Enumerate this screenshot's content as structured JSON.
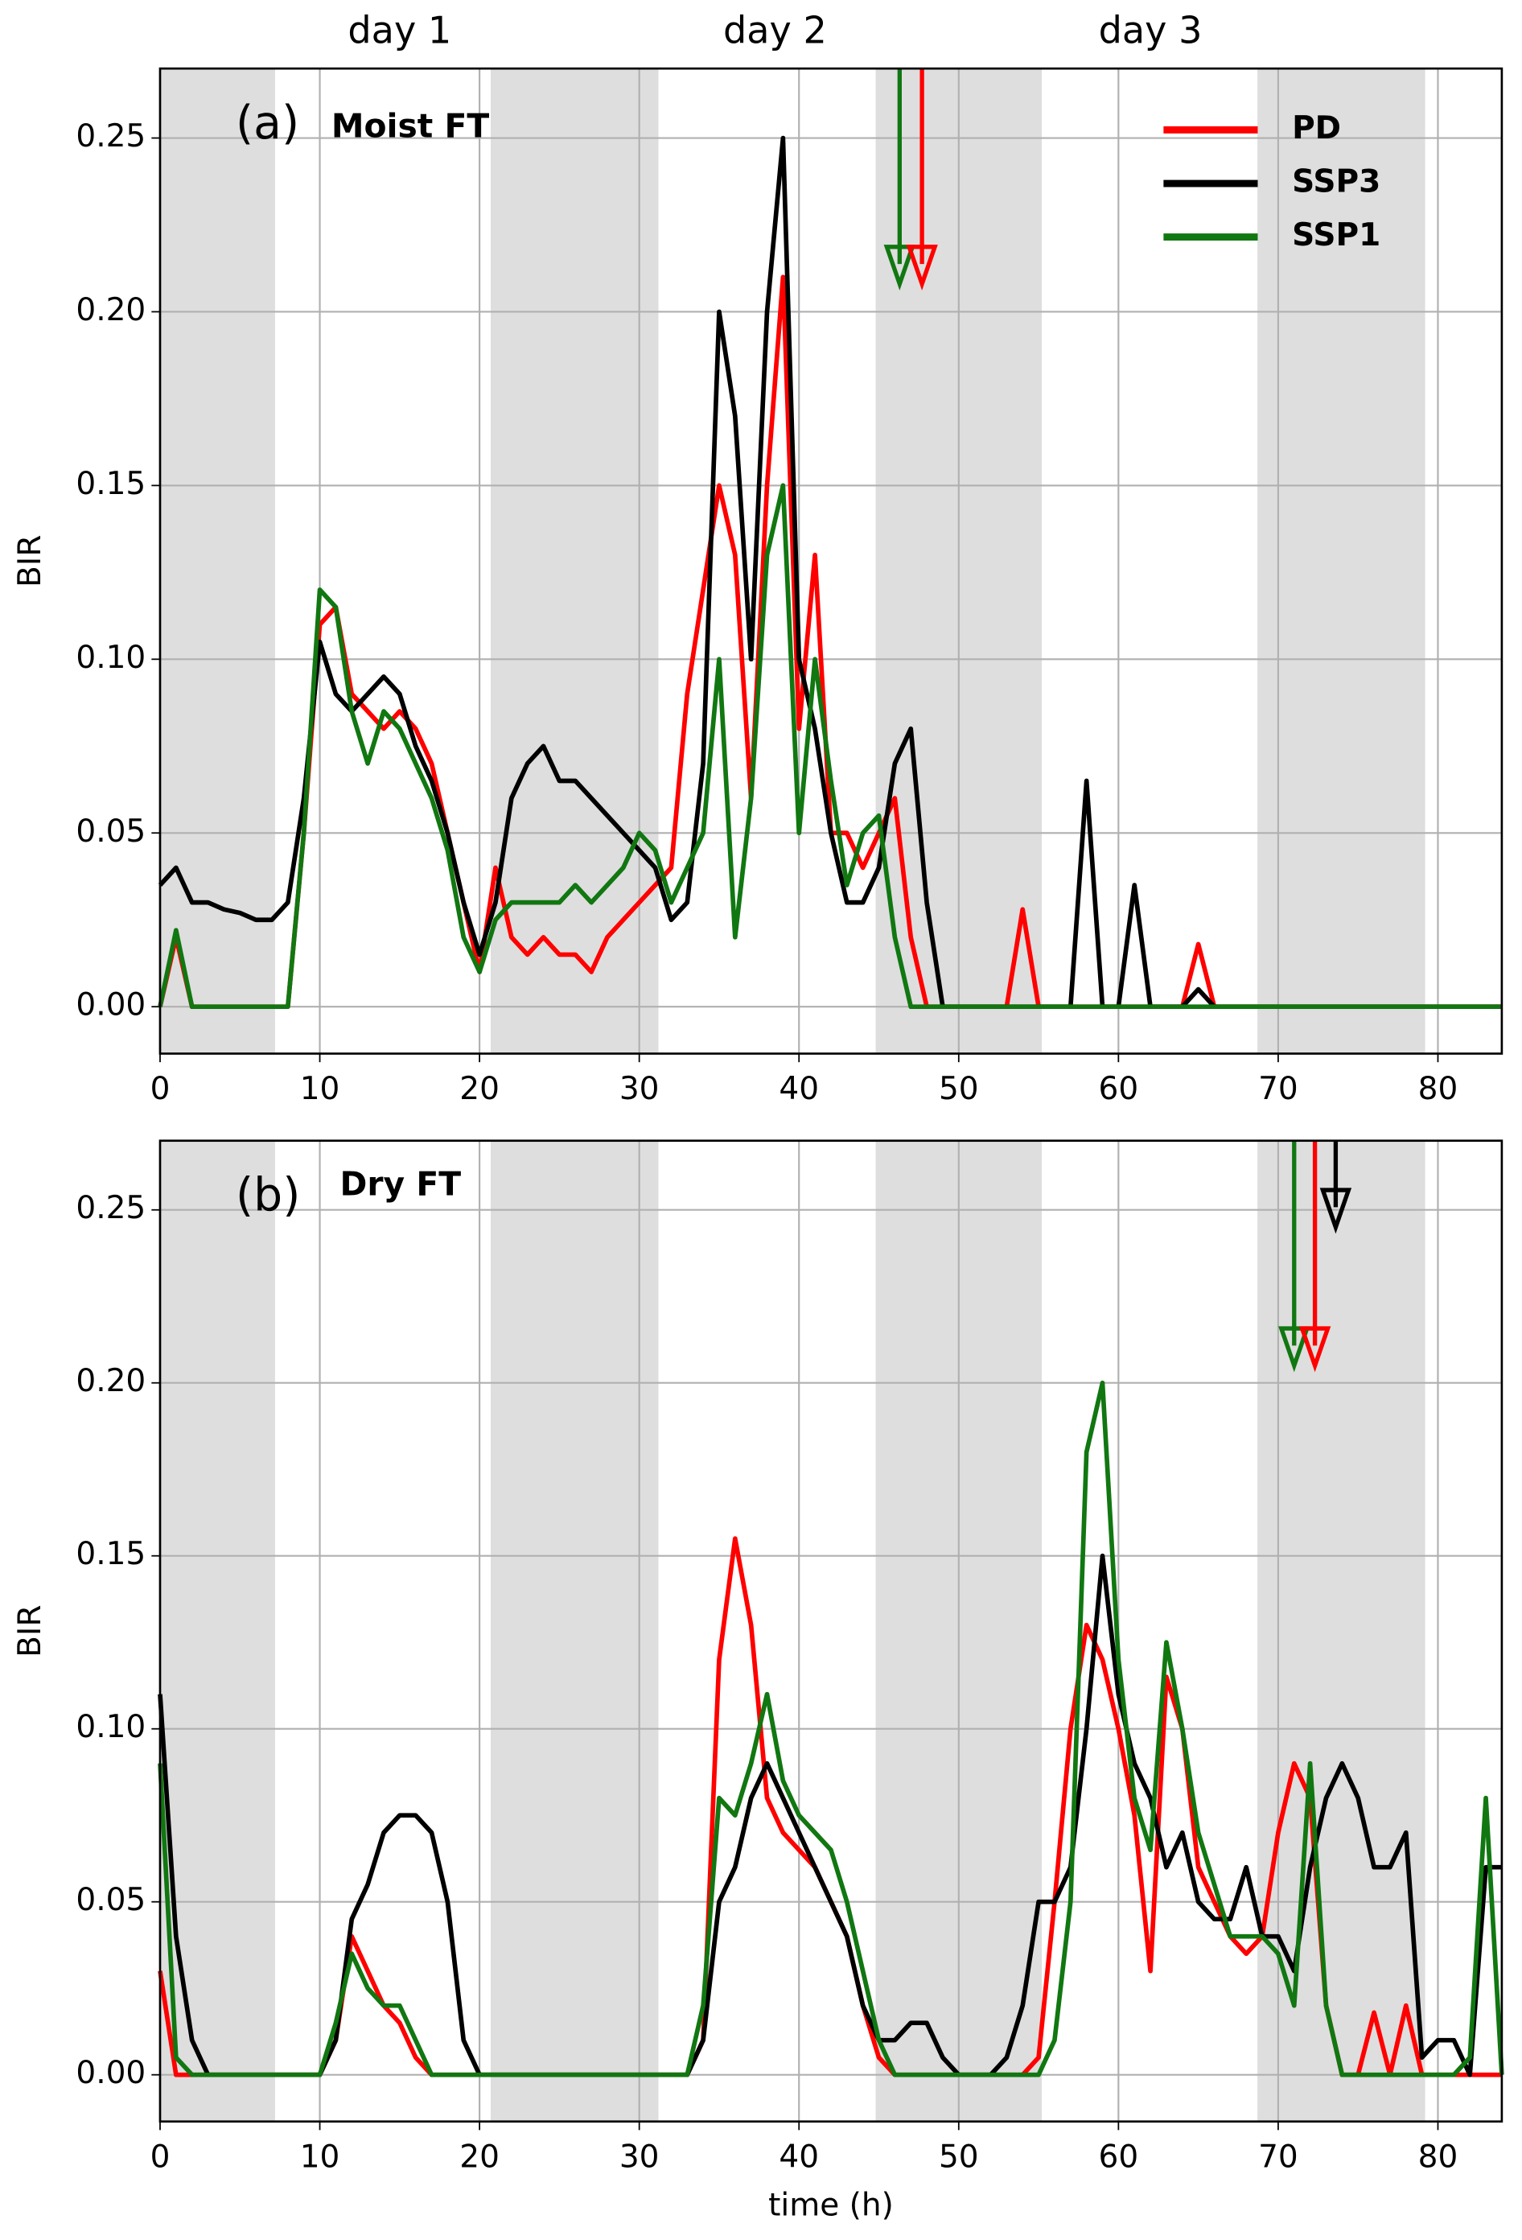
{
  "chart_data": [
    {
      "type": "line",
      "panel_label": "(a)",
      "panel_title": "Moist FT",
      "ylabel": "BIR",
      "day_labels": [
        {
          "text": "day 1",
          "x": 15
        },
        {
          "text": "day 2",
          "x": 38.5
        },
        {
          "text": "day 3",
          "x": 62
        }
      ],
      "xlim": [
        0,
        84
      ],
      "ylim": [
        -0.0135,
        0.27
      ],
      "xticks": [
        0,
        10,
        20,
        30,
        40,
        50,
        60,
        70,
        80
      ],
      "yticks": [
        {
          "value": 0,
          "label": "0.00"
        },
        {
          "value": 0.05,
          "label": "0.05"
        },
        {
          "value": 0.1,
          "label": "0.10"
        },
        {
          "value": 0.15,
          "label": "0.15"
        },
        {
          "value": 0.2,
          "label": "0.20"
        },
        {
          "value": 0.25,
          "label": "0.25"
        }
      ],
      "grid": true,
      "legend": "upper right",
      "shaded_spans": [
        [
          0,
          7.2
        ],
        [
          20.7,
          31.2
        ],
        [
          44.8,
          55.2
        ],
        [
          68.7,
          79.2
        ]
      ],
      "arrows": [
        {
          "x": 46.3,
          "y_end": 0.208,
          "color": "#117711"
        },
        {
          "x": 47.7,
          "y_end": 0.208,
          "color": "#ff0000"
        }
      ],
      "x": [
        0,
        1,
        2,
        3,
        4,
        5,
        6,
        7,
        8,
        9,
        10,
        11,
        12,
        13,
        14,
        15,
        16,
        17,
        18,
        19,
        20,
        21,
        22,
        23,
        24,
        25,
        26,
        27,
        28,
        29,
        30,
        31,
        32,
        33,
        34,
        35,
        36,
        37,
        38,
        39,
        40,
        41,
        42,
        43,
        44,
        45,
        46,
        47,
        48,
        49,
        50,
        51,
        52,
        53,
        54,
        55,
        56,
        57,
        58,
        59,
        60,
        61,
        62,
        63,
        64,
        65,
        66,
        67,
        68,
        69,
        70,
        71,
        72,
        73,
        74,
        75,
        76,
        77,
        78,
        79,
        80,
        81,
        82,
        83,
        84
      ],
      "series": [
        {
          "name": "PD",
          "color": "#ff0000",
          "values": [
            0,
            0.02,
            0,
            0,
            0,
            0,
            0,
            0,
            0,
            0.05,
            0.11,
            0.115,
            0.09,
            0.085,
            0.08,
            0.085,
            0.08,
            0.07,
            0.05,
            0.03,
            0.01,
            0.04,
            0.02,
            0.015,
            0.02,
            0.015,
            0.015,
            0.01,
            0.02,
            0.025,
            0.03,
            0.035,
            0.04,
            0.09,
            0.12,
            0.15,
            0.13,
            0.06,
            0.15,
            0.21,
            0.08,
            0.13,
            0.05,
            0.05,
            0.04,
            0.05,
            0.06,
            0.02,
            0,
            0,
            0,
            0,
            0,
            0,
            0.028,
            0,
            0,
            0,
            0,
            0,
            0,
            0,
            0,
            0,
            0,
            0.018,
            0,
            0,
            0,
            0,
            0,
            0,
            0,
            0,
            0,
            0,
            0,
            0,
            0,
            0,
            0,
            0,
            0,
            0,
            0
          ]
        },
        {
          "name": "SSP3",
          "color": "#000000",
          "values": [
            0.035,
            0.04,
            0.03,
            0.03,
            0.028,
            0.027,
            0.025,
            0.025,
            0.03,
            0.06,
            0.105,
            0.09,
            0.085,
            0.09,
            0.095,
            0.09,
            0.075,
            0.065,
            0.05,
            0.03,
            0.015,
            0.03,
            0.06,
            0.07,
            0.075,
            0.065,
            0.065,
            0.06,
            0.055,
            0.05,
            0.045,
            0.04,
            0.025,
            0.03,
            0.07,
            0.2,
            0.17,
            0.1,
            0.2,
            0.25,
            0.1,
            0.08,
            0.05,
            0.03,
            0.03,
            0.04,
            0.07,
            0.08,
            0.03,
            0,
            0,
            0,
            0,
            0,
            0,
            0,
            0,
            0,
            0.065,
            0,
            0,
            0.035,
            0,
            0,
            0,
            0.005,
            0,
            0,
            0,
            0,
            0,
            0,
            0,
            0,
            0,
            0,
            0,
            0,
            0,
            0,
            0,
            0,
            0,
            0,
            0
          ]
        },
        {
          "name": "SSP1",
          "color": "#117711",
          "values": [
            0,
            0.022,
            0,
            0,
            0,
            0,
            0,
            0,
            0,
            0.05,
            0.12,
            0.115,
            0.085,
            0.07,
            0.085,
            0.08,
            0.07,
            0.06,
            0.045,
            0.02,
            0.01,
            0.025,
            0.03,
            0.03,
            0.03,
            0.03,
            0.035,
            0.03,
            0.035,
            0.04,
            0.05,
            0.045,
            0.03,
            0.04,
            0.05,
            0.1,
            0.02,
            0.06,
            0.13,
            0.15,
            0.05,
            0.1,
            0.065,
            0.035,
            0.05,
            0.055,
            0.02,
            0,
            0,
            0,
            0,
            0,
            0,
            0,
            0,
            0,
            0,
            0,
            0,
            0,
            0,
            0,
            0,
            0,
            0,
            0,
            0,
            0,
            0,
            0,
            0,
            0,
            0,
            0,
            0,
            0,
            0,
            0,
            0,
            0,
            0,
            0,
            0,
            0,
            0
          ]
        }
      ]
    },
    {
      "type": "line",
      "panel_label": "(b)",
      "panel_title": "Dry FT",
      "ylabel": "BIR",
      "xlabel": "time (h)",
      "xlim": [
        0,
        84
      ],
      "ylim": [
        -0.0135,
        0.27
      ],
      "xticks": [
        0,
        10,
        20,
        30,
        40,
        50,
        60,
        70,
        80
      ],
      "yticks": [
        {
          "value": 0,
          "label": "0.00"
        },
        {
          "value": 0.05,
          "label": "0.05"
        },
        {
          "value": 0.1,
          "label": "0.10"
        },
        {
          "value": 0.15,
          "label": "0.15"
        },
        {
          "value": 0.2,
          "label": "0.20"
        },
        {
          "value": 0.25,
          "label": "0.25"
        }
      ],
      "grid": true,
      "shaded_spans": [
        [
          0,
          7.2
        ],
        [
          20.7,
          31.2
        ],
        [
          44.8,
          55.2
        ],
        [
          68.7,
          79.2
        ]
      ],
      "arrows": [
        {
          "x": 71,
          "y_end": 0.205,
          "color": "#117711"
        },
        {
          "x": 72.3,
          "y_end": 0.205,
          "color": "#ff0000"
        },
        {
          "x": 73.6,
          "y_end": 0.245,
          "color": "#000000"
        }
      ],
      "x": [
        0,
        1,
        2,
        3,
        4,
        5,
        6,
        7,
        8,
        9,
        10,
        11,
        12,
        13,
        14,
        15,
        16,
        17,
        18,
        19,
        20,
        21,
        22,
        23,
        24,
        25,
        26,
        27,
        28,
        29,
        30,
        31,
        32,
        33,
        34,
        35,
        36,
        37,
        38,
        39,
        40,
        41,
        42,
        43,
        44,
        45,
        46,
        47,
        48,
        49,
        50,
        51,
        52,
        53,
        54,
        55,
        56,
        57,
        58,
        59,
        60,
        61,
        62,
        63,
        64,
        65,
        66,
        67,
        68,
        69,
        70,
        71,
        72,
        73,
        74,
        75,
        76,
        77,
        78,
        79,
        80,
        81,
        82,
        83,
        84
      ],
      "series": [
        {
          "name": "PD",
          "color": "#ff0000",
          "values": [
            0.03,
            0,
            0,
            0,
            0,
            0,
            0,
            0,
            0,
            0,
            0,
            0.01,
            0.04,
            0.03,
            0.02,
            0.015,
            0.005,
            0,
            0,
            0,
            0,
            0,
            0,
            0,
            0,
            0,
            0,
            0,
            0,
            0,
            0,
            0,
            0,
            0,
            0.01,
            0.12,
            0.155,
            0.13,
            0.08,
            0.07,
            0.065,
            0.06,
            0.05,
            0.04,
            0.02,
            0.005,
            0,
            0,
            0,
            0,
            0,
            0,
            0,
            0,
            0,
            0.005,
            0.05,
            0.1,
            0.13,
            0.12,
            0.1,
            0.075,
            0.03,
            0.115,
            0.1,
            0.06,
            0.05,
            0.04,
            0.035,
            0.04,
            0.07,
            0.09,
            0.08,
            0.02,
            0,
            0,
            0.018,
            0,
            0.02,
            0,
            0,
            0,
            0,
            0,
            0
          ]
        },
        {
          "name": "SSP3",
          "color": "#000000",
          "values": [
            0.11,
            0.04,
            0.01,
            0,
            0,
            0,
            0,
            0,
            0,
            0,
            0,
            0.01,
            0.045,
            0.055,
            0.07,
            0.075,
            0.075,
            0.07,
            0.05,
            0.01,
            0,
            0,
            0,
            0,
            0,
            0,
            0,
            0,
            0,
            0,
            0,
            0,
            0,
            0,
            0.01,
            0.05,
            0.06,
            0.08,
            0.09,
            0.08,
            0.07,
            0.06,
            0.05,
            0.04,
            0.02,
            0.01,
            0.01,
            0.015,
            0.015,
            0.005,
            0,
            0,
            0,
            0.005,
            0.02,
            0.05,
            0.05,
            0.06,
            0.1,
            0.15,
            0.11,
            0.09,
            0.08,
            0.06,
            0.07,
            0.05,
            0.045,
            0.045,
            0.06,
            0.04,
            0.04,
            0.03,
            0.06,
            0.08,
            0.09,
            0.08,
            0.06,
            0.06,
            0.07,
            0.005,
            0.01,
            0.01,
            0,
            0.06,
            0.06
          ]
        },
        {
          "name": "SSP1",
          "color": "#117711",
          "values": [
            0.09,
            0.005,
            0,
            0,
            0,
            0,
            0,
            0,
            0,
            0,
            0,
            0.015,
            0.035,
            0.025,
            0.02,
            0.02,
            0.01,
            0,
            0,
            0,
            0,
            0,
            0,
            0,
            0,
            0,
            0,
            0,
            0,
            0,
            0,
            0,
            0,
            0,
            0.02,
            0.08,
            0.075,
            0.09,
            0.11,
            0.085,
            0.075,
            0.07,
            0.065,
            0.05,
            0.03,
            0.01,
            0,
            0,
            0,
            0,
            0,
            0,
            0,
            0,
            0,
            0,
            0.01,
            0.05,
            0.18,
            0.2,
            0.12,
            0.08,
            0.065,
            0.125,
            0.1,
            0.07,
            0.055,
            0.04,
            0.04,
            0.04,
            0.035,
            0.02,
            0.09,
            0.02,
            0,
            0,
            0,
            0,
            0,
            0,
            0,
            0,
            0.005,
            0.08,
            0
          ]
        }
      ]
    }
  ]
}
